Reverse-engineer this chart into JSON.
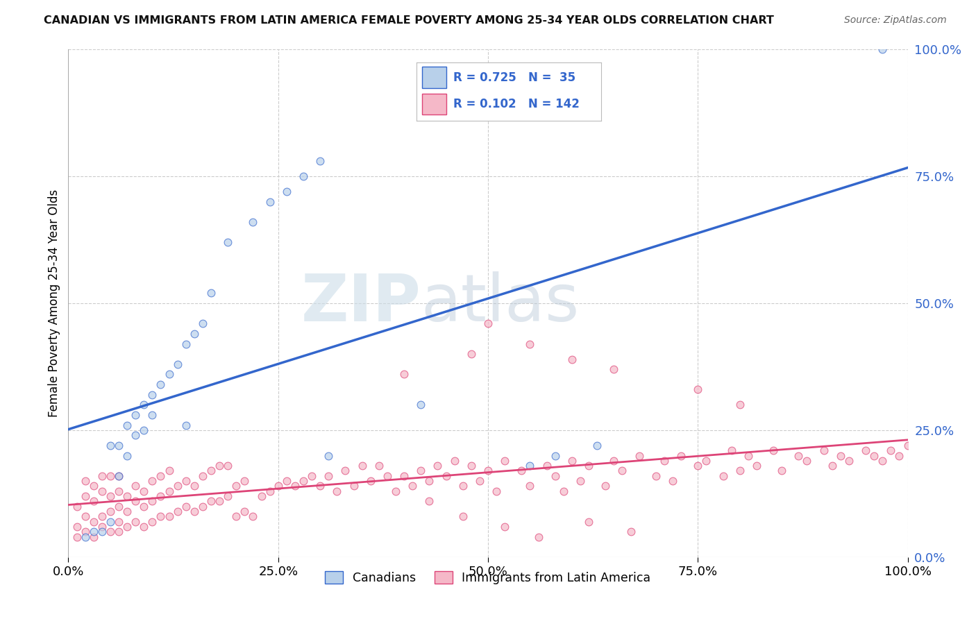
{
  "title": "CANADIAN VS IMMIGRANTS FROM LATIN AMERICA FEMALE POVERTY AMONG 25-34 YEAR OLDS CORRELATION CHART",
  "source": "Source: ZipAtlas.com",
  "ylabel": "Female Poverty Among 25-34 Year Olds",
  "background_color": "#ffffff",
  "grid_color": "#cccccc",
  "canadians_color": "#b8d0ea",
  "immigrants_color": "#f5b8c8",
  "canadian_line_color": "#3366cc",
  "immigrant_line_color": "#dd4477",
  "R_canadian": 0.725,
  "N_canadian": 35,
  "R_immigrant": 0.102,
  "N_immigrant": 142,
  "watermark_zip": "ZIP",
  "watermark_atlas": "atlas",
  "right_ytick_labels": [
    "100.0%",
    "75.0%",
    "50.0%",
    "25.0%",
    "0.0%"
  ],
  "right_ytick_values": [
    1.0,
    0.75,
    0.5,
    0.25,
    0.0
  ],
  "xtick_labels": [
    "0.0%",
    "25.0%",
    "50.0%",
    "75.0%",
    "100.0%"
  ],
  "xtick_values": [
    0.0,
    0.25,
    0.5,
    0.75,
    1.0
  ],
  "can_x": [
    0.02,
    0.03,
    0.04,
    0.05,
    0.05,
    0.06,
    0.06,
    0.07,
    0.07,
    0.08,
    0.08,
    0.09,
    0.09,
    0.1,
    0.1,
    0.11,
    0.12,
    0.13,
    0.14,
    0.14,
    0.15,
    0.16,
    0.17,
    0.19,
    0.22,
    0.24,
    0.26,
    0.28,
    0.3,
    0.31,
    0.42,
    0.55,
    0.58,
    0.63,
    0.97
  ],
  "can_y": [
    0.04,
    0.05,
    0.05,
    0.07,
    0.22,
    0.16,
    0.22,
    0.2,
    0.26,
    0.24,
    0.28,
    0.25,
    0.3,
    0.28,
    0.32,
    0.34,
    0.36,
    0.38,
    0.26,
    0.42,
    0.44,
    0.46,
    0.52,
    0.62,
    0.66,
    0.7,
    0.72,
    0.75,
    0.78,
    0.2,
    0.3,
    0.18,
    0.2,
    0.22,
    1.0
  ],
  "imm_x": [
    0.01,
    0.01,
    0.01,
    0.02,
    0.02,
    0.02,
    0.02,
    0.03,
    0.03,
    0.03,
    0.03,
    0.04,
    0.04,
    0.04,
    0.04,
    0.05,
    0.05,
    0.05,
    0.05,
    0.06,
    0.06,
    0.06,
    0.06,
    0.06,
    0.07,
    0.07,
    0.07,
    0.08,
    0.08,
    0.08,
    0.09,
    0.09,
    0.09,
    0.1,
    0.1,
    0.1,
    0.11,
    0.11,
    0.11,
    0.12,
    0.12,
    0.12,
    0.13,
    0.13,
    0.14,
    0.14,
    0.15,
    0.15,
    0.16,
    0.16,
    0.17,
    0.17,
    0.18,
    0.18,
    0.19,
    0.19,
    0.2,
    0.2,
    0.21,
    0.21,
    0.22,
    0.23,
    0.24,
    0.25,
    0.26,
    0.27,
    0.28,
    0.29,
    0.3,
    0.31,
    0.32,
    0.33,
    0.34,
    0.35,
    0.36,
    0.37,
    0.38,
    0.39,
    0.4,
    0.41,
    0.42,
    0.43,
    0.44,
    0.45,
    0.46,
    0.47,
    0.48,
    0.49,
    0.5,
    0.51,
    0.52,
    0.54,
    0.55,
    0.57,
    0.58,
    0.59,
    0.6,
    0.61,
    0.62,
    0.64,
    0.65,
    0.66,
    0.68,
    0.7,
    0.71,
    0.72,
    0.73,
    0.75,
    0.76,
    0.78,
    0.79,
    0.8,
    0.81,
    0.82,
    0.84,
    0.85,
    0.87,
    0.88,
    0.9,
    0.91,
    0.92,
    0.93,
    0.95,
    0.96,
    0.97,
    0.98,
    0.99,
    1.0,
    0.5,
    0.48,
    0.4,
    0.55,
    0.6,
    0.65,
    0.75,
    0.8,
    0.43,
    0.47,
    0.52,
    0.56,
    0.62,
    0.67
  ],
  "imm_y": [
    0.04,
    0.06,
    0.1,
    0.05,
    0.08,
    0.12,
    0.15,
    0.04,
    0.07,
    0.11,
    0.14,
    0.06,
    0.08,
    0.13,
    0.16,
    0.05,
    0.09,
    0.12,
    0.16,
    0.05,
    0.07,
    0.1,
    0.13,
    0.16,
    0.06,
    0.09,
    0.12,
    0.07,
    0.11,
    0.14,
    0.06,
    0.1,
    0.13,
    0.07,
    0.11,
    0.15,
    0.08,
    0.12,
    0.16,
    0.08,
    0.13,
    0.17,
    0.09,
    0.14,
    0.1,
    0.15,
    0.09,
    0.14,
    0.1,
    0.16,
    0.11,
    0.17,
    0.11,
    0.18,
    0.12,
    0.18,
    0.08,
    0.14,
    0.09,
    0.15,
    0.08,
    0.12,
    0.13,
    0.14,
    0.15,
    0.14,
    0.15,
    0.16,
    0.14,
    0.16,
    0.13,
    0.17,
    0.14,
    0.18,
    0.15,
    0.18,
    0.16,
    0.13,
    0.16,
    0.14,
    0.17,
    0.15,
    0.18,
    0.16,
    0.19,
    0.14,
    0.18,
    0.15,
    0.17,
    0.13,
    0.19,
    0.17,
    0.14,
    0.18,
    0.16,
    0.13,
    0.19,
    0.15,
    0.18,
    0.14,
    0.19,
    0.17,
    0.2,
    0.16,
    0.19,
    0.15,
    0.2,
    0.18,
    0.19,
    0.16,
    0.21,
    0.17,
    0.2,
    0.18,
    0.21,
    0.17,
    0.2,
    0.19,
    0.21,
    0.18,
    0.2,
    0.19,
    0.21,
    0.2,
    0.19,
    0.21,
    0.2,
    0.22,
    0.46,
    0.4,
    0.36,
    0.42,
    0.39,
    0.37,
    0.33,
    0.3,
    0.11,
    0.08,
    0.06,
    0.04,
    0.07,
    0.05
  ]
}
